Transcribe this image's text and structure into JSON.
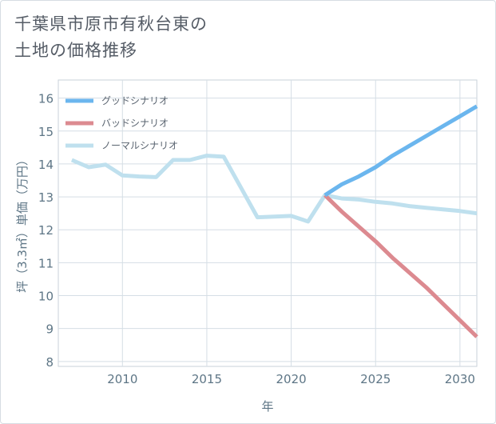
{
  "title": {
    "line1": "千葉県市原市有秋台東の",
    "line2": "土地の価格推移"
  },
  "chart_data": {
    "type": "line",
    "xlabel": "年",
    "ylabel": "坪（3.3㎡）単価（万円）",
    "xlim": [
      2006.2,
      2031
    ],
    "ylim": [
      7.85,
      16.55
    ],
    "xticks": [
      2010,
      2015,
      2020,
      2025,
      2030
    ],
    "yticks": [
      8,
      9,
      10,
      11,
      12,
      13,
      14,
      15,
      16
    ],
    "grid": true,
    "legend_position": "top-left",
    "series": [
      {
        "name": "グッドシナリオ",
        "color": "#6bb6ee",
        "x": [
          2022,
          2023,
          2024,
          2025,
          2026,
          2027,
          2028,
          2029,
          2030,
          2031
        ],
        "y": [
          13.05,
          13.38,
          13.62,
          13.9,
          14.25,
          14.55,
          14.85,
          15.15,
          15.45,
          15.75
        ]
      },
      {
        "name": "バッドシナリオ",
        "color": "#dc8a90",
        "x": [
          2022,
          2023,
          2024,
          2025,
          2026,
          2027,
          2028,
          2029,
          2030,
          2031
        ],
        "y": [
          13.05,
          12.55,
          12.1,
          11.65,
          11.15,
          10.7,
          10.25,
          9.75,
          9.25,
          8.75
        ]
      },
      {
        "name": "ノーマルシナリオ",
        "color": "#bfe0ee",
        "x": [
          2007,
          2008,
          2009,
          2010,
          2011,
          2012,
          2013,
          2014,
          2015,
          2016,
          2017,
          2018,
          2019,
          2020,
          2021,
          2022,
          2023,
          2024,
          2025,
          2026,
          2027,
          2028,
          2029,
          2030,
          2031
        ],
        "y": [
          14.12,
          13.9,
          13.98,
          13.65,
          13.62,
          13.6,
          14.12,
          14.12,
          14.25,
          14.22,
          13.3,
          12.38,
          12.4,
          12.42,
          12.25,
          13.05,
          12.95,
          12.92,
          12.85,
          12.8,
          12.72,
          12.67,
          12.62,
          12.57,
          12.5
        ]
      }
    ]
  }
}
